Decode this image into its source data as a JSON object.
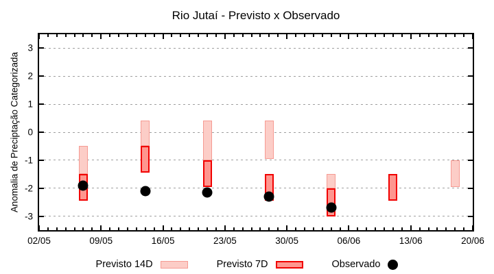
{
  "title": "Rio Jutaí - Previsto x Observado",
  "colors": {
    "previsto_14d_fill": "#fccdc7",
    "previsto_14d_border": "#f69a92",
    "previsto_7d_fill": "#fe968f",
    "previsto_7d_border": "#f10000",
    "observado": "#000000",
    "grid": "#9e9e9e",
    "axis": "#000000",
    "background": "#ffffff"
  },
  "chart_data": {
    "type": "bar",
    "title": "Rio Jutaí - Previsto x Observado",
    "xlabel": "",
    "ylabel": "Anomalia de Preciptação Categorizada",
    "ylim": [
      -3.5,
      3.5
    ],
    "grid": true,
    "legend_position": "bottom",
    "y_tick_values": [
      3,
      2,
      1,
      0,
      -1,
      -2,
      -3
    ],
    "x_tick_labels": [
      "02/05",
      "09/05",
      "16/05",
      "23/05",
      "30/05",
      "06/06",
      "13/06",
      "20/06"
    ],
    "x_tick_days": [
      0,
      7,
      14,
      21,
      28,
      35,
      42,
      49
    ],
    "x_total_days": 49,
    "x_minor_tick_every_days": 1,
    "series": [
      {
        "name": "Previsto 14D",
        "type": "range-bar",
        "fill": "#fccdc7",
        "border": "#f69a92",
        "bars": [
          {
            "date": "07/05",
            "day": 5,
            "top": -0.5,
            "bottom": -1.5
          },
          {
            "date": "14/05",
            "day": 12,
            "top": 0.42,
            "bottom": -0.5
          },
          {
            "date": "21/05",
            "day": 19,
            "top": 0.42,
            "bottom": -1.0
          },
          {
            "date": "28/05",
            "day": 26,
            "top": 0.42,
            "bottom": -0.95
          },
          {
            "date": "04/06",
            "day": 33,
            "top": -1.5,
            "bottom": -2.0
          },
          {
            "date": "18/06",
            "day": 47,
            "top": -1.0,
            "bottom": -1.95
          }
        ]
      },
      {
        "name": "Previsto 7D",
        "type": "range-bar",
        "fill": "#fe968f",
        "border": "#f10000",
        "bars": [
          {
            "date": "07/05",
            "day": 5,
            "top": -1.5,
            "bottom": -2.45
          },
          {
            "date": "14/05",
            "day": 12,
            "top": -0.5,
            "bottom": -1.45
          },
          {
            "date": "21/05",
            "day": 19,
            "top": -1.0,
            "bottom": -1.95
          },
          {
            "date": "28/05",
            "day": 26,
            "top": -1.5,
            "bottom": -2.45
          },
          {
            "date": "04/06",
            "day": 33,
            "top": -2.0,
            "bottom": -3.0
          },
          {
            "date": "11/06",
            "day": 40,
            "top": -1.5,
            "bottom": -2.45
          }
        ]
      },
      {
        "name": "Observado",
        "type": "scatter",
        "color": "#000000",
        "points": [
          {
            "date": "07/05",
            "day": 5,
            "value": -1.9
          },
          {
            "date": "14/05",
            "day": 12,
            "value": -2.1
          },
          {
            "date": "21/05",
            "day": 19,
            "value": -2.15
          },
          {
            "date": "28/05",
            "day": 26,
            "value": -2.3
          },
          {
            "date": "04/06",
            "day": 33,
            "value": -2.7
          }
        ]
      }
    ]
  },
  "legend": {
    "items": [
      {
        "label": "Previsto 14D",
        "swatch": "light-pink-bar"
      },
      {
        "label": "Previsto 7D",
        "swatch": "red-bar"
      },
      {
        "label": "Observado",
        "swatch": "black-dot"
      }
    ]
  }
}
